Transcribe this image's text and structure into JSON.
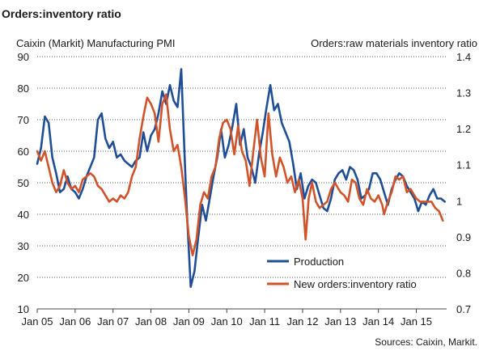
{
  "chart_data": {
    "type": "line",
    "title": "Orders:inventory ratio",
    "left_axis_label": "Caixin (Markit) Manufacturing PMI",
    "right_axis_label": "Orders:raw materials inventory ratio",
    "source": "Sources: Caixin, Markit.",
    "left_ylim": [
      10,
      90
    ],
    "left_ticks": [
      90,
      80,
      70,
      60,
      50,
      40,
      30,
      20,
      10
    ],
    "right_ylim": [
      0.7,
      1.4
    ],
    "right_ticks": [
      "1.4",
      "1.3",
      "1.2",
      "1.1",
      "1",
      "0.9",
      "0.8",
      "0.7"
    ],
    "x_range": [
      2005.0,
      2015.8
    ],
    "x_ticks": [
      {
        "x": 2005.0,
        "label": "Jan 05"
      },
      {
        "x": 2006.0,
        "label": "Jan 06"
      },
      {
        "x": 2007.0,
        "label": "Jan 07"
      },
      {
        "x": 2008.0,
        "label": "Jan 08"
      },
      {
        "x": 2009.0,
        "label": "Jan 09"
      },
      {
        "x": 2010.0,
        "label": "Jan 10"
      },
      {
        "x": 2011.0,
        "label": "Jan 11"
      },
      {
        "x": 2012.0,
        "label": "Jan 12"
      },
      {
        "x": 2013.0,
        "label": "Jan 13"
      },
      {
        "x": 2014.0,
        "label": "Jan 14"
      },
      {
        "x": 2015.0,
        "label": "Jan 15"
      }
    ],
    "grid": "horizontal dotted",
    "legend_position": "bottom-right",
    "series": [
      {
        "name": "Production",
        "axis": "left",
        "color": "#1f4e96",
        "points": [
          [
            2005.0,
            56
          ],
          [
            2005.1,
            61
          ],
          [
            2005.2,
            71
          ],
          [
            2005.3,
            69
          ],
          [
            2005.4,
            58
          ],
          [
            2005.5,
            53
          ],
          [
            2005.6,
            47
          ],
          [
            2005.7,
            48
          ],
          [
            2005.8,
            52
          ],
          [
            2005.9,
            48
          ],
          [
            2006.0,
            47
          ],
          [
            2006.1,
            45
          ],
          [
            2006.2,
            48
          ],
          [
            2006.3,
            52
          ],
          [
            2006.5,
            58
          ],
          [
            2006.6,
            70
          ],
          [
            2006.7,
            72
          ],
          [
            2006.8,
            64
          ],
          [
            2006.9,
            61
          ],
          [
            2007.0,
            63
          ],
          [
            2007.1,
            58
          ],
          [
            2007.2,
            59
          ],
          [
            2007.3,
            57
          ],
          [
            2007.4,
            56
          ],
          [
            2007.5,
            55
          ],
          [
            2007.6,
            57
          ],
          [
            2007.7,
            58
          ],
          [
            2007.8,
            66
          ],
          [
            2007.9,
            60
          ],
          [
            2008.0,
            65
          ],
          [
            2008.1,
            67
          ],
          [
            2008.2,
            72
          ],
          [
            2008.3,
            79
          ],
          [
            2008.4,
            75
          ],
          [
            2008.5,
            81
          ],
          [
            2008.6,
            76
          ],
          [
            2008.7,
            74
          ],
          [
            2008.8,
            86
          ],
          [
            2008.9,
            55
          ],
          [
            2008.95,
            40
          ],
          [
            2009.05,
            17
          ],
          [
            2009.15,
            22
          ],
          [
            2009.25,
            33
          ],
          [
            2009.35,
            43
          ],
          [
            2009.45,
            38
          ],
          [
            2009.55,
            45
          ],
          [
            2009.65,
            52
          ],
          [
            2009.75,
            58
          ],
          [
            2009.85,
            67
          ],
          [
            2009.95,
            58
          ],
          [
            2010.05,
            62
          ],
          [
            2010.15,
            68
          ],
          [
            2010.25,
            75
          ],
          [
            2010.35,
            62
          ],
          [
            2010.45,
            67
          ],
          [
            2010.55,
            58
          ],
          [
            2010.65,
            55
          ],
          [
            2010.75,
            50
          ],
          [
            2010.85,
            59
          ],
          [
            2010.95,
            66
          ],
          [
            2011.05,
            74
          ],
          [
            2011.15,
            81
          ],
          [
            2011.25,
            73
          ],
          [
            2011.35,
            75
          ],
          [
            2011.45,
            69
          ],
          [
            2011.55,
            66
          ],
          [
            2011.65,
            63
          ],
          [
            2011.75,
            56
          ],
          [
            2011.85,
            48
          ],
          [
            2011.95,
            53
          ],
          [
            2012.05,
            45
          ],
          [
            2012.15,
            49
          ],
          [
            2012.25,
            51
          ],
          [
            2012.35,
            50
          ],
          [
            2012.45,
            46
          ],
          [
            2012.55,
            42
          ],
          [
            2012.65,
            41
          ],
          [
            2012.75,
            45
          ],
          [
            2012.85,
            51
          ],
          [
            2012.95,
            53
          ],
          [
            2013.05,
            54
          ],
          [
            2013.15,
            51
          ],
          [
            2013.25,
            55
          ],
          [
            2013.35,
            54
          ],
          [
            2013.45,
            51
          ],
          [
            2013.55,
            45
          ],
          [
            2013.65,
            46
          ],
          [
            2013.75,
            48
          ],
          [
            2013.85,
            53
          ],
          [
            2013.95,
            53
          ],
          [
            2014.05,
            51
          ],
          [
            2014.15,
            47
          ],
          [
            2014.25,
            43
          ],
          [
            2014.35,
            48
          ],
          [
            2014.45,
            51
          ],
          [
            2014.55,
            53
          ],
          [
            2014.65,
            52
          ],
          [
            2014.75,
            49
          ],
          [
            2014.85,
            47
          ],
          [
            2014.95,
            45
          ],
          [
            2015.05,
            41
          ],
          [
            2015.15,
            44
          ],
          [
            2015.25,
            43
          ],
          [
            2015.35,
            46
          ],
          [
            2015.45,
            48
          ],
          [
            2015.55,
            45
          ],
          [
            2015.65,
            45
          ],
          [
            2015.75,
            44
          ]
        ]
      },
      {
        "name": "New orders:inventory ratio",
        "axis": "left",
        "color": "#d0532a",
        "points": [
          [
            2005.0,
            60
          ],
          [
            2005.1,
            57
          ],
          [
            2005.2,
            60
          ],
          [
            2005.3,
            55
          ],
          [
            2005.4,
            50
          ],
          [
            2005.5,
            47
          ],
          [
            2005.6,
            49
          ],
          [
            2005.7,
            54
          ],
          [
            2005.8,
            50
          ],
          [
            2005.9,
            48
          ],
          [
            2006.0,
            49
          ],
          [
            2006.1,
            47
          ],
          [
            2006.2,
            51
          ],
          [
            2006.3,
            52
          ],
          [
            2006.4,
            53
          ],
          [
            2006.5,
            52
          ],
          [
            2006.6,
            49
          ],
          [
            2006.7,
            48
          ],
          [
            2006.8,
            46
          ],
          [
            2006.9,
            44
          ],
          [
            2007.0,
            45
          ],
          [
            2007.1,
            44
          ],
          [
            2007.2,
            46
          ],
          [
            2007.3,
            45
          ],
          [
            2007.4,
            47
          ],
          [
            2007.5,
            52
          ],
          [
            2007.6,
            55
          ],
          [
            2007.7,
            64
          ],
          [
            2007.8,
            71
          ],
          [
            2007.9,
            77
          ],
          [
            2008.0,
            75
          ],
          [
            2008.1,
            72
          ],
          [
            2008.2,
            63
          ],
          [
            2008.3,
            75
          ],
          [
            2008.4,
            78
          ],
          [
            2008.5,
            67
          ],
          [
            2008.6,
            60
          ],
          [
            2008.7,
            62
          ],
          [
            2008.8,
            55
          ],
          [
            2008.9,
            45
          ],
          [
            2009.0,
            33
          ],
          [
            2009.1,
            27
          ],
          [
            2009.2,
            32
          ],
          [
            2009.3,
            43
          ],
          [
            2009.4,
            47
          ],
          [
            2009.5,
            45
          ],
          [
            2009.6,
            52
          ],
          [
            2009.7,
            55
          ],
          [
            2009.8,
            64
          ],
          [
            2009.9,
            69
          ],
          [
            2010.0,
            70
          ],
          [
            2010.1,
            67
          ],
          [
            2010.2,
            59
          ],
          [
            2010.3,
            68
          ],
          [
            2010.4,
            60
          ],
          [
            2010.5,
            57
          ],
          [
            2010.6,
            49
          ],
          [
            2010.7,
            60
          ],
          [
            2010.8,
            70
          ],
          [
            2010.9,
            58
          ],
          [
            2011.0,
            52
          ],
          [
            2011.1,
            72
          ],
          [
            2011.2,
            59
          ],
          [
            2011.3,
            52
          ],
          [
            2011.4,
            58
          ],
          [
            2011.5,
            55
          ],
          [
            2011.6,
            50
          ],
          [
            2011.7,
            52
          ],
          [
            2011.8,
            47
          ],
          [
            2011.9,
            51
          ],
          [
            2012.0,
            45
          ],
          [
            2012.08,
            32
          ],
          [
            2012.16,
            45
          ],
          [
            2012.25,
            50
          ],
          [
            2012.35,
            44
          ],
          [
            2012.45,
            42
          ],
          [
            2012.55,
            43
          ],
          [
            2012.65,
            44
          ],
          [
            2012.75,
            48
          ],
          [
            2012.85,
            50
          ],
          [
            2013.0,
            47
          ],
          [
            2013.1,
            46
          ],
          [
            2013.2,
            44
          ],
          [
            2013.3,
            51
          ],
          [
            2013.4,
            50
          ],
          [
            2013.5,
            45
          ],
          [
            2013.6,
            43
          ],
          [
            2013.7,
            48
          ],
          [
            2013.8,
            45
          ],
          [
            2013.9,
            44
          ],
          [
            2014.0,
            46
          ],
          [
            2014.1,
            43
          ],
          [
            2014.15,
            40
          ],
          [
            2014.25,
            44
          ],
          [
            2014.35,
            47
          ],
          [
            2014.45,
            52
          ],
          [
            2014.55,
            51
          ],
          [
            2014.65,
            52
          ],
          [
            2014.75,
            47
          ],
          [
            2014.85,
            48
          ],
          [
            2015.0,
            45
          ],
          [
            2015.1,
            44
          ],
          [
            2015.2,
            44
          ],
          [
            2015.3,
            44
          ],
          [
            2015.4,
            44
          ],
          [
            2015.5,
            42
          ],
          [
            2015.6,
            41
          ],
          [
            2015.7,
            38
          ]
        ]
      }
    ]
  }
}
